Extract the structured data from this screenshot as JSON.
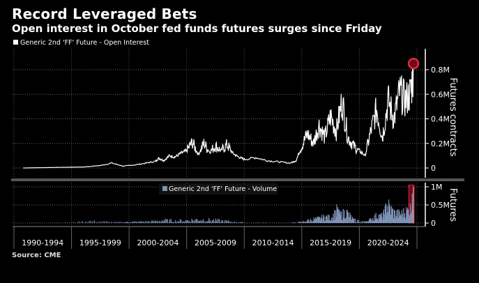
{
  "title": "Record Leveraged Bets",
  "subtitle": "Open interest in October fed funds futures surges since Friday",
  "source": "Source:   CME",
  "colors": {
    "background": "#000000",
    "open_interest_line": "#ffffff",
    "volume_fill": "#7f93b8",
    "highlight": "#e0293e"
  },
  "chart_data": [
    {
      "type": "line",
      "title": "Generic 2nd 'FF' Future - Open Interest",
      "legend": "Generic 2nd 'FF' Future - Open Interest",
      "legend_position": "top-left",
      "ylabel": "Futures contracts",
      "ylim": [
        0,
        950000
      ],
      "yticks": [
        0,
        200000,
        400000,
        600000,
        800000
      ],
      "ytick_labels": [
        "0",
        "0.2M",
        "0.4M",
        "0.6M",
        "0.8M"
      ],
      "grid": true,
      "annotation": "red circle marking record high",
      "x": [
        1990.8,
        1992,
        1994,
        1996,
        1997.5,
        1998.5,
        1999.5,
        2000.5,
        2001.5,
        2002.3,
        2002.6,
        2003,
        2003.5,
        2004,
        2004.5,
        2005,
        2005.5,
        2006,
        2006.5,
        2007,
        2007.5,
        2008,
        2008.5,
        2009,
        2009.5,
        2010,
        2011,
        2012,
        2013,
        2014,
        2014.5,
        2015,
        2015.5,
        2016,
        2016.5,
        2017,
        2017.5,
        2018,
        2018.5,
        2019,
        2019.5,
        2020,
        2020.5,
        2021,
        2021.5,
        2022,
        2022.5,
        2023,
        2023.5,
        2024,
        2024.5,
        2024.7
      ],
      "y": [
        0,
        2000,
        5000,
        8000,
        20000,
        40000,
        15000,
        25000,
        40000,
        55000,
        80000,
        60000,
        100000,
        90000,
        120000,
        140000,
        210000,
        110000,
        200000,
        130000,
        180000,
        140000,
        190000,
        120000,
        90000,
        70000,
        85000,
        60000,
        50000,
        40000,
        60000,
        180000,
        280000,
        200000,
        350000,
        250000,
        420000,
        300000,
        550000,
        250000,
        180000,
        140000,
        100000,
        300000,
        480000,
        250000,
        550000,
        400000,
        620000,
        550000,
        620000,
        850000
      ]
    },
    {
      "type": "bar",
      "title": "Generic 2nd 'FF' Future - Volume",
      "legend": "Generic 2nd 'FF' Future - Volume",
      "legend_position": "top-left",
      "ylabel": "Futures",
      "ylim": [
        0,
        1100000
      ],
      "yticks": [
        0,
        500000,
        1000000
      ],
      "ytick_labels": [
        "0",
        "0.5M",
        "1M"
      ],
      "highlight_range": [
        2024.3,
        2024.75
      ],
      "x": [
        1991,
        1993,
        1995,
        1996.5,
        1998,
        1999.5,
        2000,
        2001,
        2002,
        2003,
        2004,
        2005,
        2006,
        2007,
        2008,
        2009,
        2010,
        2012,
        2014,
        2015,
        2015.8,
        2016.5,
        2017,
        2017.5,
        2018,
        2018.3,
        2018.8,
        2019.5,
        2020.5,
        2021,
        2021.5,
        2022,
        2022.4,
        2023,
        2023.5,
        2024,
        2024.5,
        2024.65
      ],
      "y": [
        5000,
        10000,
        20000,
        80000,
        50000,
        30000,
        40000,
        60000,
        70000,
        120000,
        90000,
        110000,
        150000,
        130000,
        100000,
        50000,
        20000,
        15000,
        10000,
        50000,
        150000,
        180000,
        250000,
        200000,
        480000,
        300000,
        450000,
        120000,
        60000,
        150000,
        300000,
        250000,
        720000,
        400000,
        350000,
        450000,
        600000,
        1000000
      ],
      "xtick_labels": [
        "1990-1994",
        "1995-1999",
        "2000-2004",
        "2005-2009",
        "2010-2014",
        "2015-2019",
        "2020-2024"
      ]
    }
  ]
}
